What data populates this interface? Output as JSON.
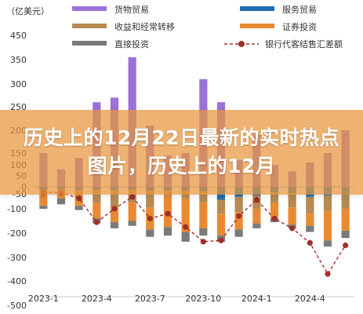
{
  "overlay": {
    "title": "历史上的12月22日最新的实时热点图片，历史上的12月"
  },
  "chart_data": {
    "type": "bar",
    "stacked": true,
    "unit": "（亿美元）",
    "ylim": [
      -500,
      450
    ],
    "yticks": [
      450,
      350,
      300,
      250,
      200,
      150,
      100,
      50,
      0,
      -50,
      -100,
      -200,
      -300,
      -400,
      -500
    ],
    "ytick_labels": [
      "450",
      "350",
      "300",
      "250",
      "200",
      "150",
      "100",
      "50",
      "0",
      "-50",
      "-100",
      "-200",
      "-300",
      "-400",
      "-500"
    ],
    "categories": [
      "2023-1",
      "2023-2",
      "2023-3",
      "2023-4",
      "2023-5",
      "2023-6",
      "2023-7",
      "2023-8",
      "2023-9",
      "2023-10",
      "2023-11",
      "2023-12",
      "2024-1",
      "2024-2",
      "2024-3",
      "2024-4",
      "2024-5",
      "2024-6"
    ],
    "xtick_labels": [
      "2023-1",
      "2023-4",
      "2023-7",
      "2023-10",
      "2024-1",
      "2024-4"
    ],
    "xtick_index": [
      0,
      3,
      6,
      9,
      12,
      15
    ],
    "series": [
      {
        "name": "货物贸易",
        "color": "#9b72d8",
        "kind": "bar",
        "values": [
          150,
          80,
          130,
          260,
          270,
          360,
          210,
          140,
          150,
          310,
          260,
          120,
          190,
          100,
          70,
          110,
          150,
          200
        ]
      },
      {
        "name": "服务贸易",
        "color": "#1f6fb2",
        "kind": "bar",
        "values": [
          -20,
          -15,
          -20,
          -20,
          -25,
          -20,
          -25,
          -25,
          -25,
          -30,
          -70,
          -60,
          -55,
          -40,
          -45,
          -60,
          -55,
          -50
        ]
      },
      {
        "name": "收益和经常转移",
        "color": "#b68a52",
        "kind": "bar",
        "values": [
          -30,
          -20,
          -25,
          -60,
          -70,
          -60,
          -70,
          -30,
          -40,
          -50,
          -50,
          -55,
          -45,
          -40,
          -50,
          -60,
          -55,
          -50
        ]
      },
      {
        "name": "证券投资",
        "color": "#e98a33",
        "kind": "bar",
        "values": [
          -40,
          -30,
          -45,
          -60,
          -60,
          -70,
          -90,
          -120,
          -130,
          -100,
          -90,
          -70,
          -60,
          -60,
          -70,
          -50,
          -120,
          -90
        ]
      },
      {
        "name": "直接投资",
        "color": "#7a7a7a",
        "kind": "bar",
        "values": [
          -10,
          -20,
          -15,
          -20,
          -25,
          -20,
          -30,
          -35,
          -40,
          -30,
          -25,
          -30,
          -20,
          -15,
          -15,
          -25,
          -25,
          -30
        ]
      },
      {
        "name": "银行代客结售汇差额",
        "color": "#a0302c",
        "kind": "line",
        "values": [
          -40,
          -40,
          -65,
          -155,
          -100,
          -60,
          -140,
          -120,
          -175,
          -235,
          -230,
          -130,
          -70,
          -140,
          -180,
          -240,
          -370,
          -250
        ]
      }
    ]
  }
}
